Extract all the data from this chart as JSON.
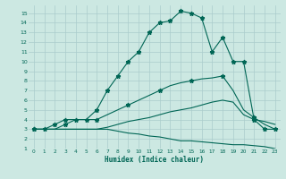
{
  "xlabel": "Humidex (Indice chaleur)",
  "bg_color": "#cce8e2",
  "grid_color": "#aacccc",
  "line_color": "#006655",
  "xlim": [
    -0.5,
    23.5
  ],
  "ylim": [
    1,
    15.8
  ],
  "x": [
    0,
    1,
    2,
    3,
    4,
    5,
    6,
    7,
    8,
    9,
    10,
    11,
    12,
    13,
    14,
    15,
    16,
    17,
    18,
    19,
    20,
    21,
    22,
    23
  ],
  "top_line": [
    3,
    3,
    3.5,
    4,
    4,
    4,
    5,
    7,
    8.5,
    10,
    11,
    13,
    14,
    14.2,
    15.2,
    15,
    14.5,
    11,
    12.5,
    10,
    10,
    4,
    3,
    3
  ],
  "upper_mid": [
    3,
    3,
    3,
    3.5,
    4,
    4,
    4,
    4.5,
    5,
    5.5,
    6,
    6.5,
    7,
    7.5,
    7.8,
    8,
    8.2,
    8.3,
    8.5,
    7,
    5,
    4.2,
    3.5,
    3
  ],
  "lower_mid": [
    3,
    3,
    3,
    3,
    3,
    3,
    3,
    3.2,
    3.5,
    3.8,
    4,
    4.2,
    4.5,
    4.8,
    5,
    5.2,
    5.5,
    5.8,
    6,
    5.8,
    4.5,
    4,
    3.8,
    3.5
  ],
  "bottom_line": [
    3,
    3,
    3,
    3,
    3,
    3,
    3,
    3,
    2.8,
    2.6,
    2.5,
    2.3,
    2.2,
    2,
    1.8,
    1.8,
    1.7,
    1.6,
    1.5,
    1.4,
    1.4,
    1.3,
    1.2,
    1
  ],
  "marker": "*",
  "top_marker_size": 3.5,
  "upper_marker_size": 3.5
}
